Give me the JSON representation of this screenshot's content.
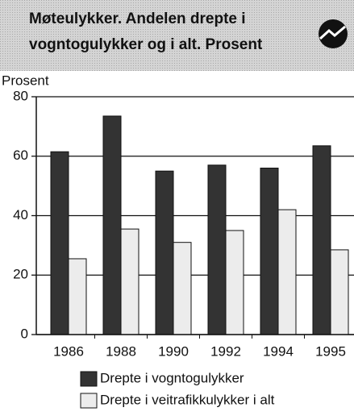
{
  "chart_data": {
    "type": "bar",
    "title": [
      "Møteulykker. Andelen drepte i",
      "vogntogulykker og i alt. Prosent"
    ],
    "ylabel": "Prosent",
    "categories": [
      "1986",
      "1988",
      "1990",
      "1992",
      "1994",
      "1995"
    ],
    "series": [
      {
        "name": "Drepte i vogntogulykker",
        "color": "#333333",
        "values": [
          61.5,
          73.5,
          55,
          57,
          56,
          63.5
        ]
      },
      {
        "name": "Drepte i veitrafikkulykker i alt",
        "color": "#ececec",
        "values": [
          25.5,
          35.5,
          31,
          35,
          42,
          28.5
        ]
      }
    ],
    "ylim": [
      0,
      80
    ],
    "yticks": [
      0,
      20,
      40,
      60,
      80
    ],
    "grid": true
  }
}
